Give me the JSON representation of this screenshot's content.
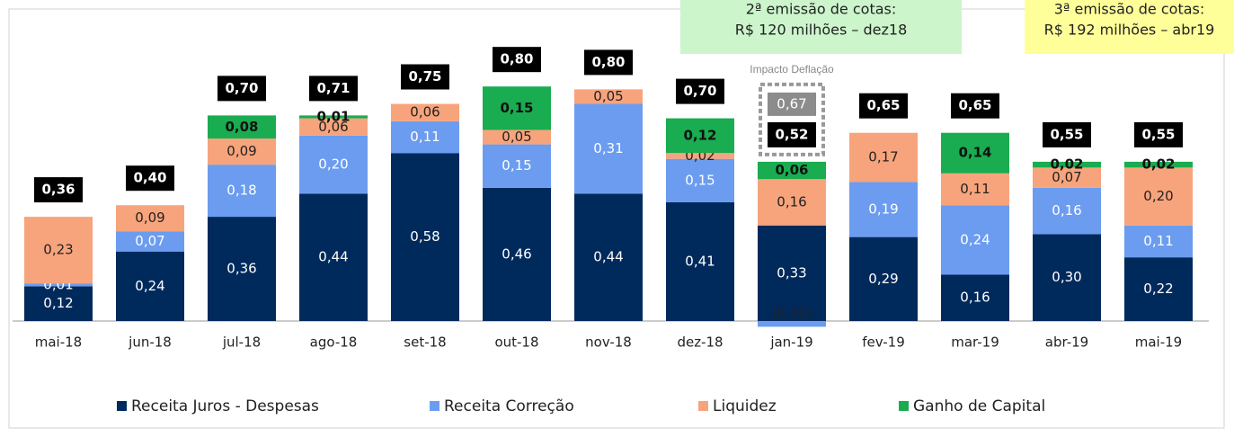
{
  "chart_data": {
    "type": "stacked-bar",
    "categories": [
      "mai-18",
      "jun-18",
      "jul-18",
      "ago-18",
      "set-18",
      "out-18",
      "nov-18",
      "dez-18",
      "jan-19",
      "fev-19",
      "mar-19",
      "abr-19",
      "mai-19"
    ],
    "series": [
      {
        "name": "Receita Juros - Despesas",
        "color": "#002a5c",
        "values": [
          0.12,
          0.24,
          0.36,
          0.44,
          0.58,
          0.46,
          0.44,
          0.41,
          0.33,
          0.29,
          0.16,
          0.3,
          0.22
        ],
        "value_labels": [
          "0,12",
          "0,24",
          "0,36",
          "0,44",
          "0,58",
          "0,46",
          "0,44",
          "0,41",
          "0,33",
          "0,29",
          "0,16",
          "0,30",
          "0,22"
        ]
      },
      {
        "name": "Receita Correção",
        "color": "#6b9cf0",
        "values": [
          0.01,
          0.07,
          0.18,
          0.2,
          0.11,
          0.15,
          0.31,
          0.15,
          -0.02,
          0.19,
          0.24,
          0.16,
          0.11
        ],
        "value_labels": [
          "0,01",
          "0,07",
          "0,18",
          "0,20",
          "0,11",
          "0,15",
          "0,31",
          "0,15",
          "(0,02)",
          "0,19",
          "0,24",
          "0,16",
          "0,11"
        ]
      },
      {
        "name": "Liquidez",
        "color": "#f7a47c",
        "values": [
          0.23,
          0.09,
          0.09,
          0.06,
          0.06,
          0.05,
          0.05,
          0.02,
          0.16,
          0.17,
          0.11,
          0.07,
          0.2
        ],
        "value_labels": [
          "0,23",
          "0,09",
          "0,09",
          "0,06",
          "0,06",
          "0,05",
          "0,05",
          "0,02",
          "0,16",
          "0,17",
          "0,11",
          "0,07",
          "0,20"
        ]
      },
      {
        "name": "Ganho de Capital",
        "color": "#1aac50",
        "values": [
          null,
          null,
          0.08,
          0.01,
          null,
          0.15,
          null,
          0.12,
          0.06,
          null,
          0.14,
          0.02,
          0.02
        ],
        "value_labels": [
          null,
          null,
          "0,08",
          "0,01",
          null,
          "0,15",
          null,
          "0,12",
          "0,06",
          null,
          "0,14",
          "0,02",
          "0,02"
        ]
      }
    ],
    "totals": [
      0.36,
      0.4,
      0.7,
      0.71,
      0.75,
      0.8,
      0.8,
      0.7,
      0.52,
      0.65,
      0.65,
      0.55,
      0.55
    ],
    "total_labels": [
      "0,36",
      "0,40",
      "0,70",
      "0,71",
      "0,75",
      "0,80",
      "0,80",
      "0,70",
      "0,52",
      "0,65",
      "0,65",
      "0,55",
      "0,55"
    ],
    "deflation": {
      "label": "Impacto Deflação",
      "category": "jan-19",
      "value": 0.67,
      "value_label": "0,67"
    },
    "annotations": [
      {
        "lines": [
          "2ª emissão de cotas:",
          "R$ 120 milhões – dez18"
        ],
        "color": "#ccf5cc"
      },
      {
        "lines": [
          "3ª emissão de cotas:",
          "R$ 192 milhões – abr19"
        ],
        "color": "#ffff99"
      }
    ],
    "legend": "bottom"
  }
}
